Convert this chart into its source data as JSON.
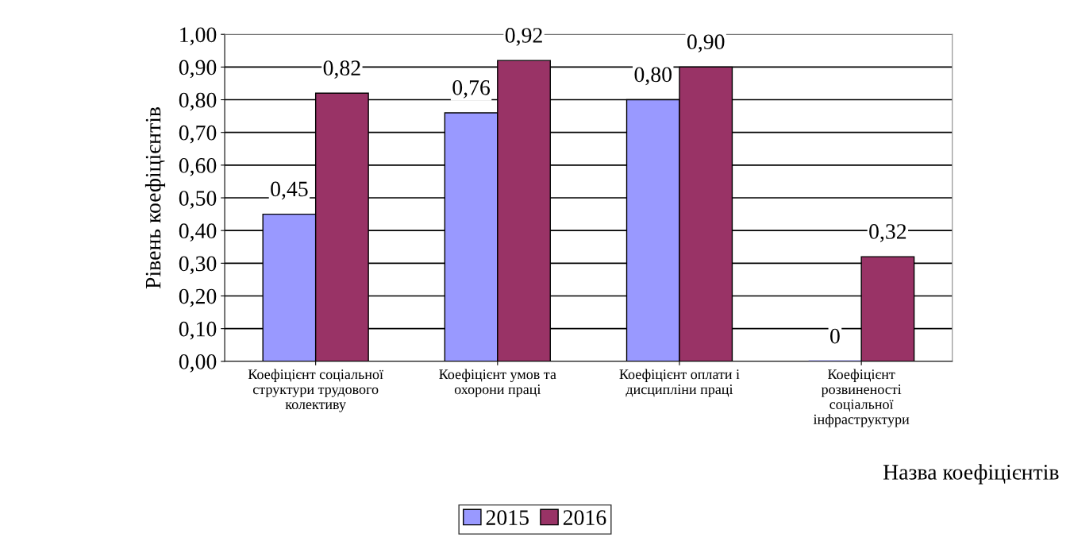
{
  "chart_data": {
    "type": "bar",
    "xlabel": "Назва коефіцієнтів",
    "ylabel": "Рівень коефіцієнтів",
    "categories": [
      "Коефіцієнт соціальної структури трудового колективу",
      "Коефіцієнт умов та охорони праці",
      "Коефіцієнт оплати і дисципліни праці",
      "Коефіцієнт розвиненості соціальної інфраструктури"
    ],
    "series": [
      {
        "name": "2015",
        "color": "#9999ff",
        "values": [
          0.45,
          0.76,
          0.8,
          0
        ],
        "value_labels": [
          "0,45",
          "0,76",
          "0,80",
          "0"
        ]
      },
      {
        "name": "2016",
        "color": "#993366",
        "values": [
          0.82,
          0.92,
          0.9,
          0.32
        ],
        "value_labels": [
          "0,82",
          "0,92",
          "0,90",
          "0,32"
        ]
      }
    ],
    "ylim": [
      0,
      1.0
    ],
    "yticks": [
      {
        "value": 0,
        "label": "0,00"
      },
      {
        "value": 0.1,
        "label": "0,10"
      },
      {
        "value": 0.2,
        "label": "0,20"
      },
      {
        "value": 0.3,
        "label": "0,30"
      },
      {
        "value": 0.4,
        "label": "0,40"
      },
      {
        "value": 0.5,
        "label": "0,50"
      },
      {
        "value": 0.6,
        "label": "0,60"
      },
      {
        "value": 0.7,
        "label": "0,70"
      },
      {
        "value": 0.8,
        "label": "0,80"
      },
      {
        "value": 0.9,
        "label": "0,90"
      },
      {
        "value": 1.0,
        "label": "1,00"
      }
    ],
    "grid": "y",
    "legend": "bottom"
  }
}
